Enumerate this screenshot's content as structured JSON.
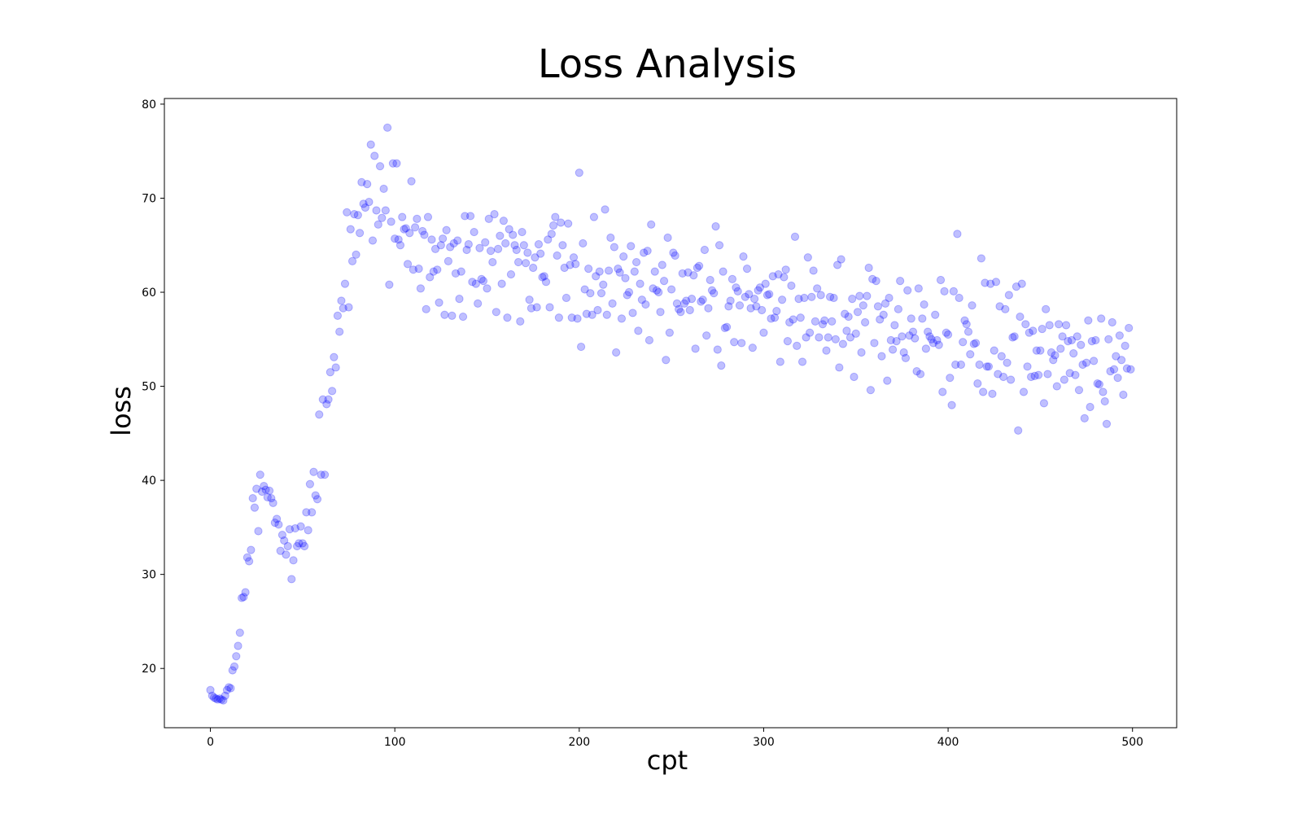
{
  "chart_data": {
    "type": "scatter",
    "title": "Loss Analysis",
    "x_label": "cpt",
    "y_label": "loss",
    "color": "#0000ff",
    "x": [
      0,
      1,
      2,
      3,
      4,
      5,
      6,
      7,
      8,
      9,
      10,
      11,
      12,
      13,
      14,
      15,
      16,
      17,
      18,
      19,
      20,
      21,
      22,
      23,
      24,
      25,
      26,
      27,
      28,
      29,
      30,
      31,
      32,
      33,
      34,
      35,
      36,
      37,
      38,
      39,
      40,
      41,
      42,
      43,
      44,
      45,
      46,
      47,
      48,
      49,
      50,
      51,
      52,
      53,
      54,
      55,
      56,
      57,
      58,
      59,
      60,
      61,
      62,
      63,
      64,
      65,
      66,
      67,
      68,
      69,
      70,
      71,
      72,
      73,
      74,
      75,
      76,
      77,
      78,
      79,
      80,
      81,
      82,
      83,
      84,
      85,
      86,
      87,
      88,
      89,
      90,
      91,
      92,
      93,
      94,
      95,
      96,
      97,
      98,
      99,
      100,
      101,
      102,
      103,
      104,
      105,
      106,
      107,
      108,
      109,
      110,
      111,
      112,
      113,
      114,
      115,
      116,
      117,
      118,
      119,
      120,
      121,
      122,
      123,
      124,
      125,
      126,
      127,
      128,
      129,
      130,
      131,
      132,
      133,
      134,
      135,
      136,
      137,
      138,
      139,
      140,
      141,
      142,
      143,
      144,
      145,
      146,
      147,
      148,
      149,
      150,
      151,
      152,
      153,
      154,
      155,
      156,
      157,
      158,
      159,
      160,
      161,
      162,
      163,
      164,
      165,
      166,
      167,
      168,
      169,
      170,
      171,
      172,
      173,
      174,
      175,
      176,
      177,
      178,
      179,
      180,
      181,
      182,
      183,
      184,
      185,
      186,
      187,
      188,
      189,
      190,
      191,
      192,
      193,
      194,
      195,
      196,
      197,
      198,
      199,
      200,
      201,
      202,
      203,
      204,
      205,
      206,
      207,
      208,
      209,
      210,
      211,
      212,
      213,
      214,
      215,
      216,
      217,
      218,
      219,
      220,
      221,
      222,
      223,
      224,
      225,
      226,
      227,
      228,
      229,
      230,
      231,
      232,
      233,
      234,
      235,
      236,
      237,
      238,
      239,
      240,
      241,
      242,
      243,
      244,
      245,
      246,
      247,
      248,
      249,
      250,
      251,
      252,
      253,
      254,
      255,
      256,
      257,
      258,
      259,
      260,
      261,
      262,
      263,
      264,
      265,
      266,
      267,
      268,
      269,
      270,
      271,
      272,
      273,
      274,
      275,
      276,
      277,
      278,
      279,
      280,
      281,
      282,
      283,
      284,
      285,
      286,
      287,
      288,
      289,
      290,
      291,
      292,
      293,
      294,
      295,
      296,
      297,
      298,
      299,
      300,
      301,
      302,
      303,
      304,
      305,
      306,
      307,
      308,
      309,
      310,
      311,
      312,
      313,
      314,
      315,
      316,
      317,
      318,
      319,
      320,
      321,
      322,
      323,
      324,
      325,
      326,
      327,
      328,
      329,
      330,
      331,
      332,
      333,
      334,
      335,
      336,
      337,
      338,
      339,
      340,
      341,
      342,
      343,
      344,
      345,
      346,
      347,
      348,
      349,
      350,
      351,
      352,
      353,
      354,
      355,
      356,
      357,
      358,
      359,
      360,
      361,
      362,
      363,
      364,
      365,
      366,
      367,
      368,
      369,
      370,
      371,
      372,
      373,
      374,
      375,
      376,
      377,
      378,
      379,
      380,
      381,
      382,
      383,
      384,
      385,
      386,
      387,
      388,
      389,
      390,
      391,
      392,
      393,
      394,
      395,
      396,
      397,
      398,
      399,
      400,
      401,
      402,
      403,
      404,
      405,
      406,
      407,
      408,
      409,
      410,
      411,
      412,
      413,
      414,
      415,
      416,
      417,
      418,
      419,
      420,
      421,
      422,
      423,
      424,
      425,
      426,
      427,
      428,
      429,
      430,
      431,
      432,
      433,
      434,
      435,
      436,
      437,
      438,
      439,
      440,
      441,
      442,
      443,
      444,
      445,
      446,
      447,
      448,
      449,
      450,
      451,
      452,
      453,
      454,
      455,
      456,
      457,
      458,
      459,
      460,
      461,
      462,
      463,
      464,
      465,
      466,
      467,
      468,
      469,
      470,
      471,
      472,
      473,
      474,
      475,
      476,
      477,
      478,
      479,
      480,
      481,
      482,
      483,
      484,
      485,
      486,
      487,
      488,
      489,
      490,
      491,
      492,
      493,
      494,
      495,
      496,
      497,
      498,
      499
    ],
    "values": [
      17.7,
      17.1,
      16.9,
      16.8,
      16.7,
      16.8,
      16.7,
      16.6,
      17.1,
      17.7,
      18.0,
      17.9,
      19.8,
      20.2,
      21.3,
      22.4,
      23.8,
      27.5,
      27.6,
      28.1,
      31.8,
      31.4,
      32.6,
      38.1,
      37.1,
      39.1,
      34.6,
      40.6,
      38.8,
      39.4,
      39.0,
      38.2,
      38.9,
      38.1,
      37.6,
      35.5,
      35.9,
      35.3,
      32.5,
      34.2,
      33.6,
      32.1,
      33.0,
      34.8,
      29.5,
      31.5,
      34.9,
      33.0,
      33.3,
      35.1,
      33.3,
      33.0,
      36.6,
      34.7,
      39.6,
      36.6,
      40.9,
      38.4,
      38.0,
      47.0,
      40.6,
      48.6,
      40.6,
      48.1,
      48.6,
      51.5,
      49.5,
      53.1,
      52.0,
      57.5,
      55.8,
      59.1,
      58.3,
      60.9,
      68.5,
      58.4,
      66.7,
      63.3,
      68.3,
      64.0,
      68.2,
      66.3,
      71.7,
      69.4,
      69.0,
      71.5,
      69.6,
      75.7,
      65.5,
      74.5,
      68.7,
      67.2,
      73.4,
      67.9,
      71.0,
      68.7,
      77.5,
      60.8,
      67.5,
      73.7,
      65.7,
      73.7,
      65.6,
      65.0,
      68.0,
      66.7,
      66.8,
      63.0,
      66.3,
      71.8,
      62.4,
      66.9,
      67.8,
      62.5,
      60.4,
      66.5,
      66.1,
      58.2,
      68.0,
      61.6,
      65.6,
      62.2,
      64.6,
      62.4,
      58.9,
      65.0,
      65.7,
      57.6,
      66.6,
      63.3,
      64.8,
      57.5,
      65.2,
      62.0,
      65.5,
      59.3,
      62.2,
      57.4,
      68.1,
      64.5,
      65.1,
      68.1,
      61.1,
      66.4,
      60.9,
      58.8,
      64.7,
      61.4,
      61.2,
      65.3,
      60.4,
      67.8,
      64.4,
      63.2,
      68.3,
      57.9,
      64.6,
      66.0,
      60.9,
      67.6,
      65.2,
      57.3,
      66.7,
      61.9,
      66.1,
      65.0,
      64.5,
      63.2,
      56.9,
      66.4,
      65.0,
      63.1,
      64.2,
      59.2,
      58.3,
      62.6,
      63.7,
      58.4,
      65.1,
      64.1,
      61.6,
      61.7,
      61.1,
      65.6,
      58.4,
      66.2,
      67.1,
      68.0,
      63.9,
      57.3,
      67.4,
      65.0,
      62.6,
      59.4,
      67.3,
      62.9,
      57.3,
      63.7,
      63.0,
      57.2,
      72.7,
      54.2,
      65.2,
      60.3,
      57.7,
      62.5,
      59.9,
      57.6,
      68.0,
      61.7,
      58.1,
      62.2,
      59.9,
      60.8,
      68.8,
      57.6,
      62.3,
      65.8,
      58.8,
      64.8,
      53.6,
      62.5,
      62.1,
      57.2,
      63.8,
      61.5,
      59.7,
      60.0,
      64.9,
      57.8,
      62.2,
      63.2,
      55.9,
      60.9,
      59.2,
      64.2,
      58.7,
      64.4,
      54.9,
      67.2,
      60.4,
      62.2,
      60.2,
      60.0,
      57.9,
      62.9,
      61.2,
      52.8,
      65.8,
      55.7,
      60.3,
      64.2,
      63.9,
      58.8,
      58.2,
      57.9,
      62.0,
      58.8,
      59.1,
      62.1,
      58.1,
      59.3,
      61.8,
      54.0,
      62.6,
      62.8,
      59.0,
      59.2,
      64.5,
      55.4,
      58.3,
      61.3,
      60.2,
      59.9,
      67.0,
      53.9,
      65.0,
      52.2,
      62.2,
      56.2,
      56.3,
      58.5,
      59.1,
      61.4,
      54.7,
      60.5,
      60.1,
      58.6,
      54.6,
      63.8,
      59.5,
      62.5,
      59.8,
      58.3,
      54.1,
      59.3,
      58.5,
      60.2,
      60.5,
      58.1,
      55.7,
      60.9,
      59.7,
      59.8,
      57.2,
      61.7,
      57.3,
      58.0,
      61.9,
      52.6,
      59.2,
      61.6,
      62.4,
      54.8,
      56.8,
      60.7,
      57.1,
      65.9,
      54.3,
      59.3,
      57.3,
      52.6,
      59.4,
      55.2,
      63.7,
      55.7,
      59.5,
      62.3,
      56.9,
      60.4,
      55.2,
      59.7,
      56.6,
      57.0,
      53.8,
      55.2,
      59.5,
      56.9,
      59.4,
      55.0,
      62.9,
      52.0,
      63.5,
      54.5,
      57.7,
      55.9,
      57.4,
      55.2,
      59.3,
      51.0,
      55.6,
      57.9,
      59.6,
      53.6,
      58.6,
      56.8,
      59.6,
      62.6,
      49.6,
      61.4,
      54.6,
      61.2,
      58.5,
      57.1,
      53.2,
      57.6,
      58.8,
      50.6,
      59.4,
      54.9,
      53.9,
      56.5,
      54.8,
      58.2,
      61.2,
      55.3,
      53.6,
      53.0,
      60.2,
      55.4,
      57.2,
      55.8,
      55.1,
      51.6,
      60.4,
      51.3,
      57.2,
      58.7,
      54.0,
      55.8,
      55.3,
      55.0,
      54.6,
      57.6,
      54.9,
      54.4,
      61.3,
      49.4,
      60.1,
      55.7,
      55.5,
      50.9,
      48.0,
      60.1,
      52.3,
      66.2,
      59.4,
      52.3,
      54.7,
      57.0,
      56.6,
      55.8,
      53.4,
      58.6,
      54.5,
      54.6,
      50.3,
      52.3,
      63.6,
      49.4,
      61.0,
      52.1,
      52.1,
      60.9,
      49.2,
      53.8,
      61.1,
      51.3,
      58.5,
      53.2,
      51.0,
      58.2,
      52.5,
      59.7,
      50.7,
      55.2,
      55.3,
      60.6,
      45.3,
      57.4,
      60.9,
      49.4,
      56.6,
      52.1,
      55.7,
      51.0,
      55.9,
      51.1,
      53.8,
      51.2,
      53.8,
      56.1,
      48.2,
      58.2,
      51.3,
      56.5,
      53.6,
      52.8,
      53.3,
      50.0,
      56.6,
      54.0,
      55.3,
      50.7,
      56.5,
      54.8,
      51.4,
      54.9,
      53.5,
      51.2,
      55.3,
      49.6,
      54.4,
      52.3,
      46.6,
      52.5,
      57.0,
      47.8,
      54.8,
      52.7,
      54.9,
      50.3,
      50.2,
      57.2,
      49.4,
      48.4,
      46.0,
      55.0,
      51.6,
      56.8,
      51.8,
      53.2,
      50.9,
      55.4,
      52.8,
      49.1,
      54.3,
      51.9,
      56.2,
      51.8
    ],
    "xlim": [
      -24.95,
      523.95
    ],
    "ylim": [
      13.7,
      80.6
    ],
    "xticks": [
      0,
      100,
      200,
      300,
      400,
      500
    ],
    "yticks": [
      20,
      30,
      40,
      50,
      60,
      70,
      80
    ]
  }
}
